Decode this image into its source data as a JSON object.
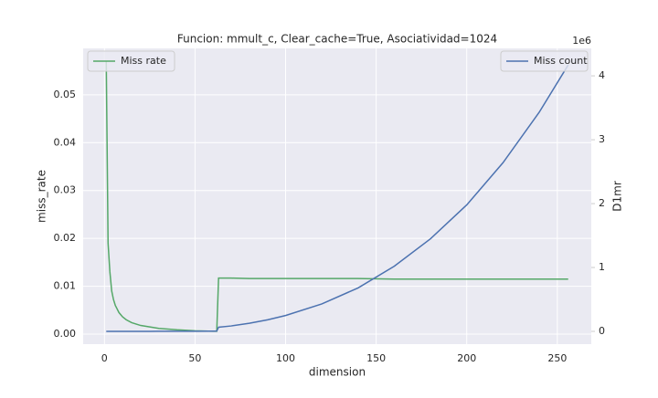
{
  "chart_data": {
    "type": "line",
    "title": "Funcion: mmult_c, Clear_cache=True, Asociatividad=1024",
    "x_label": "dimension",
    "y_label": "miss_rate",
    "y2_label": "D1mr",
    "y2_offset_label": "1e6",
    "x": [
      1,
      2,
      3,
      4,
      5,
      6,
      8,
      10,
      12,
      15,
      20,
      25,
      30,
      40,
      50,
      60,
      62,
      63,
      64,
      70,
      80,
      90,
      100,
      120,
      140,
      160,
      180,
      200,
      220,
      240,
      256
    ],
    "series": [
      {
        "name": "Miss rate",
        "color": "#55a868",
        "axis": "y",
        "values": [
          0.057,
          0.019,
          0.013,
          0.009,
          0.0072,
          0.006,
          0.0045,
          0.0036,
          0.003,
          0.0024,
          0.0018,
          0.0015,
          0.0012,
          0.0009,
          0.0007,
          0.0006,
          0.0006,
          0.0117,
          0.0117,
          0.0117,
          0.0116,
          0.0116,
          0.0116,
          0.0116,
          0.0116,
          0.0115,
          0.0115,
          0.0115,
          0.0115,
          0.0115,
          0.0115
        ]
      },
      {
        "name": "Miss count",
        "color": "#4c72b0",
        "axis": "y2",
        "values": [
          0,
          0,
          0,
          0,
          0,
          0,
          0,
          0,
          0,
          0,
          0,
          0,
          0.001,
          0.001,
          0.002,
          0.004,
          0.005,
          0.065,
          0.068,
          0.085,
          0.127,
          0.181,
          0.248,
          0.43,
          0.68,
          1.02,
          1.45,
          1.98,
          2.64,
          3.43,
          4.17
        ]
      }
    ],
    "xlim": [
      -11.75,
      268.75
    ],
    "xticks": [
      0,
      50,
      100,
      150,
      200,
      250
    ],
    "ylim": [
      -0.0021,
      0.0597
    ],
    "yticks": [
      {
        "value": 0,
        "label": "0.00"
      },
      0.01,
      0.02,
      0.03,
      0.04,
      0.05
    ],
    "y2lim": [
      -0.2,
      4.43
    ],
    "y2ticks": [
      0,
      1,
      2,
      3,
      4
    ],
    "grid": true,
    "legend_y": "upper left",
    "legend_y2": "upper right"
  }
}
